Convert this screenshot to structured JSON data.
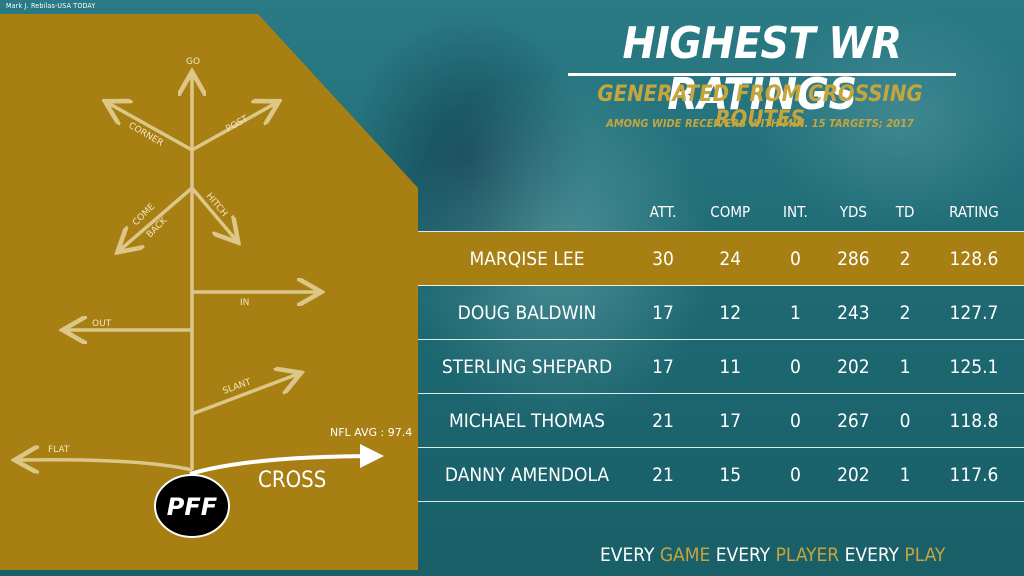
{
  "photo_credit": "Mark J. Rebilas-USA TODAY",
  "routes": {
    "go": "GO",
    "corner": "CORNER",
    "post": "POST",
    "come": "COME",
    "back": "BACK",
    "hitch": "HITCH",
    "in": "IN",
    "out": "OUT",
    "slant": "SLANT",
    "flat": "FLAT",
    "cross": "CROSS"
  },
  "nfl_avg": "NFL AVG :  97.4",
  "logo_text": "PFF",
  "title": "HIGHEST WR RATINGS",
  "subtitle": "GENERATED FROM CROSSING ROUTES",
  "note": "AMONG WIDE RECEIVERS WITH MIN. 15 TARGETS; 2017",
  "table": {
    "headers": [
      "",
      "ATT.",
      "COMP",
      "INT.",
      "YDS",
      "TD",
      "RATING"
    ],
    "rows": [
      {
        "player": "MARQISE LEE",
        "att": "30",
        "comp": "24",
        "int": "0",
        "yds": "286",
        "td": "2",
        "rating": "128.6"
      },
      {
        "player": "DOUG BALDWIN",
        "att": "17",
        "comp": "12",
        "int": "1",
        "yds": "243",
        "td": "2",
        "rating": "127.7"
      },
      {
        "player": "STERLING SHEPARD",
        "att": "17",
        "comp": "11",
        "int": "0",
        "yds": "202",
        "td": "1",
        "rating": "125.1"
      },
      {
        "player": "MICHAEL THOMAS",
        "att": "21",
        "comp": "17",
        "int": "0",
        "yds": "267",
        "td": "0",
        "rating": "118.8"
      },
      {
        "player": "DANNY AMENDOLA",
        "att": "21",
        "comp": "15",
        "int": "0",
        "yds": "202",
        "td": "1",
        "rating": "117.6"
      }
    ]
  },
  "tagline": {
    "w1": "EVERY ",
    "w2": "GAME",
    "w3": " EVERY ",
    "w4": "PLAYER",
    "w5": " EVERY ",
    "w6": "PLAY"
  },
  "colors": {
    "gold": "#a77f12",
    "gold_text": "#c6a53d",
    "teal_bg": "#1f6f78"
  }
}
